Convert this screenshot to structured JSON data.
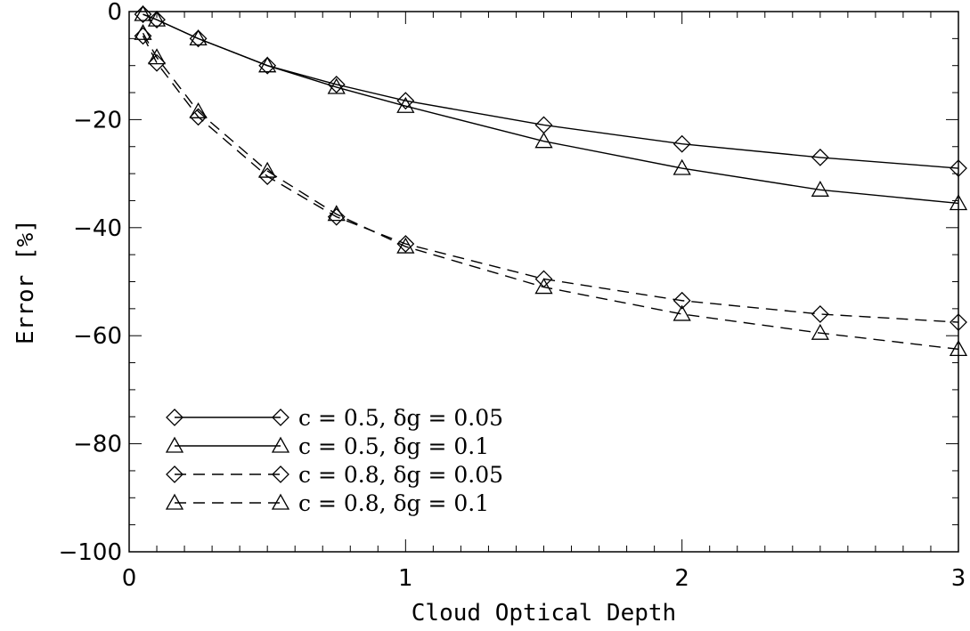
{
  "chart_data": {
    "type": "line",
    "title": "",
    "xlabel": "Cloud Optical Depth",
    "ylabel": "Error [%]",
    "xlim": [
      0,
      3
    ],
    "ylim": [
      -100,
      0
    ],
    "xticks": [
      0,
      1,
      2,
      3
    ],
    "yticks": [
      0,
      -20,
      -40,
      -60,
      -80,
      -100
    ],
    "x_minor_step": 0.1,
    "y_minor_step": 5,
    "grid": false,
    "legend_position": "bottom-left",
    "x": [
      0.05,
      0.1,
      0.25,
      0.5,
      0.75,
      1.0,
      1.5,
      2.0,
      2.5,
      3.0
    ],
    "series": [
      {
        "name": "c = 0.5, δg = 0.05",
        "marker": "diamond",
        "line": "solid",
        "values": [
          -0.5,
          -1.5,
          -5.0,
          -10.0,
          -13.5,
          -16.5,
          -21.0,
          -24.5,
          -27.0,
          -29.0
        ]
      },
      {
        "name": "c = 0.5, δg = 0.1",
        "marker": "triangle",
        "line": "solid",
        "values": [
          -0.5,
          -1.5,
          -5.0,
          -10.0,
          -14.0,
          -17.5,
          -24.0,
          -29.0,
          -33.0,
          -35.5
        ]
      },
      {
        "name": "c = 0.8, δg = 0.05",
        "marker": "diamond",
        "line": "dashed",
        "values": [
          -4.5,
          -9.5,
          -19.5,
          -30.5,
          -38.0,
          -43.0,
          -49.5,
          -53.5,
          -56.0,
          -57.5
        ]
      },
      {
        "name": "c = 0.8, δg = 0.1",
        "marker": "triangle",
        "line": "dashed",
        "values": [
          -4.0,
          -8.5,
          -18.5,
          -29.5,
          -37.5,
          -43.5,
          -51.0,
          -56.0,
          -59.5,
          -62.5
        ]
      }
    ],
    "line_color": "#000000",
    "background": "#ffffff"
  }
}
